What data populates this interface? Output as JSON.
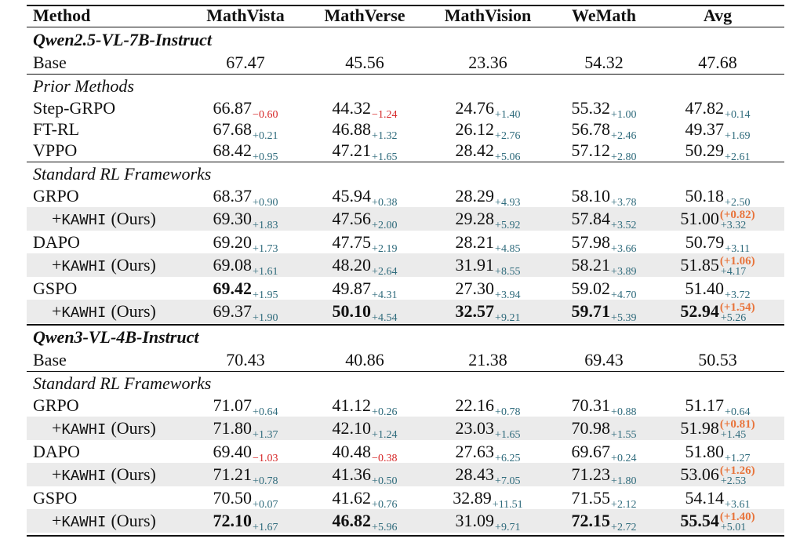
{
  "header": [
    "Method",
    "MathVista",
    "MathVerse",
    "MathVision",
    "WeMath",
    "Avg"
  ],
  "sections": [
    {
      "title": "Qwen2.5-VL-7B-Instruct",
      "groups": [
        {
          "rows": [
            {
              "method": "Base",
              "cells": [
                [
                  "67.47"
                ],
                [
                  "45.56"
                ],
                [
                  "23.36"
                ],
                [
                  "54.32"
                ],
                [
                  "47.68"
                ]
              ]
            }
          ]
        },
        {
          "label": "Prior Methods",
          "rows": [
            {
              "method": "Step-GRPO",
              "cells": [
                [
                  "66.87",
                  "−0.60"
                ],
                [
                  "44.32",
                  "−1.24"
                ],
                [
                  "24.76",
                  "+1.40"
                ],
                [
                  "55.32",
                  "+1.00"
                ],
                [
                  "47.82",
                  "+0.14"
                ]
              ]
            },
            {
              "method": "FT-RL",
              "cells": [
                [
                  "67.68",
                  "+0.21"
                ],
                [
                  "46.88",
                  "+1.32"
                ],
                [
                  "26.12",
                  "+2.76"
                ],
                [
                  "56.78",
                  "+2.46"
                ],
                [
                  "49.37",
                  "+1.69"
                ]
              ]
            },
            {
              "method": "VPPO",
              "cells": [
                [
                  "68.42",
                  "+0.95"
                ],
                [
                  "47.21",
                  "+1.65"
                ],
                [
                  "28.42",
                  "+5.06"
                ],
                [
                  "57.12",
                  "+2.80"
                ],
                [
                  "50.29",
                  "+2.61"
                ]
              ]
            }
          ]
        },
        {
          "label": "Standard RL Frameworks",
          "rows": [
            {
              "method": "GRPO",
              "cells": [
                [
                  "68.37",
                  "+0.90"
                ],
                [
                  "45.94",
                  "+0.38"
                ],
                [
                  "28.29",
                  "+4.93"
                ],
                [
                  "58.10",
                  "+3.78"
                ],
                [
                  "50.18",
                  "+2.50"
                ]
              ]
            },
            {
              "method": [
                "+",
                "KAWHI",
                "(Ours)"
              ],
              "cells": [
                [
                  "69.30",
                  "+1.83"
                ],
                [
                  "47.56",
                  "+2.00"
                ],
                [
                  "29.28",
                  "+5.92"
                ],
                [
                  "57.84",
                  "+3.52"
                ],
                [
                  "51.00",
                  "+3.32",
                  "(+0.82)"
                ]
              ]
            },
            {
              "method": "DAPO",
              "cells": [
                [
                  "69.20",
                  "+1.73"
                ],
                [
                  "47.75",
                  "+2.19"
                ],
                [
                  "28.21",
                  "+4.85"
                ],
                [
                  "57.98",
                  "+3.66"
                ],
                [
                  "50.79",
                  "+3.11"
                ]
              ]
            },
            {
              "method": [
                "+",
                "KAWHI",
                "(Ours)"
              ],
              "cells": [
                [
                  "69.08",
                  "+1.61"
                ],
                [
                  "48.20",
                  "+2.64"
                ],
                [
                  "31.91",
                  "+8.55"
                ],
                [
                  "58.21",
                  "+3.89"
                ],
                [
                  "51.85",
                  "+4.17",
                  "(+1.06)"
                ]
              ]
            },
            {
              "method": "GSPO",
              "bold": [
                0
              ],
              "cells": [
                [
                  "69.42",
                  "+1.95"
                ],
                [
                  "49.87",
                  "+4.31"
                ],
                [
                  "27.30",
                  "+3.94"
                ],
                [
                  "59.02",
                  "+4.70"
                ],
                [
                  "51.40",
                  "+3.72"
                ]
              ]
            },
            {
              "method": [
                "+",
                "KAWHI",
                "(Ours)"
              ],
              "bold": [
                1,
                2,
                3,
                4
              ],
              "cells": [
                [
                  "69.37",
                  "+1.90"
                ],
                [
                  "50.10",
                  "+4.54"
                ],
                [
                  "32.57",
                  "+9.21"
                ],
                [
                  "59.71",
                  "+5.39"
                ],
                [
                  "52.94",
                  "+5.26",
                  "(+1.54)"
                ]
              ]
            }
          ]
        }
      ]
    },
    {
      "title": "Qwen3-VL-4B-Instruct",
      "groups": [
        {
          "rows": [
            {
              "method": "Base",
              "cells": [
                [
                  "70.43"
                ],
                [
                  "40.86"
                ],
                [
                  "21.38"
                ],
                [
                  "69.43"
                ],
                [
                  "50.53"
                ]
              ]
            }
          ]
        },
        {
          "label": "Standard RL Frameworks",
          "rows": [
            {
              "method": "GRPO",
              "cells": [
                [
                  "71.07",
                  "+0.64"
                ],
                [
                  "41.12",
                  "+0.26"
                ],
                [
                  "22.16",
                  "+0.78"
                ],
                [
                  "70.31",
                  "+0.88"
                ],
                [
                  "51.17",
                  "+0.64"
                ]
              ]
            },
            {
              "method": [
                "+",
                "KAWHI",
                "(Ours)"
              ],
              "cells": [
                [
                  "71.80",
                  "+1.37"
                ],
                [
                  "42.10",
                  "+1.24"
                ],
                [
                  "23.03",
                  "+1.65"
                ],
                [
                  "70.98",
                  "+1.55"
                ],
                [
                  "51.98",
                  "+1.45",
                  "(+0.81)"
                ]
              ]
            },
            {
              "method": "DAPO",
              "cells": [
                [
                  "69.40",
                  "−1.03"
                ],
                [
                  "40.48",
                  "−0.38"
                ],
                [
                  "27.63",
                  "+6.25"
                ],
                [
                  "69.67",
                  "+0.24"
                ],
                [
                  "51.80",
                  "+1.27"
                ]
              ]
            },
            {
              "method": [
                "+",
                "KAWHI",
                "(Ours)"
              ],
              "cells": [
                [
                  "71.21",
                  "+0.78"
                ],
                [
                  "41.36",
                  "+0.50"
                ],
                [
                  "28.43",
                  "+7.05"
                ],
                [
                  "71.23",
                  "+1.80"
                ],
                [
                  "53.06",
                  "+2.53",
                  "(+1.26)"
                ]
              ]
            },
            {
              "method": "GSPO",
              "cells": [
                [
                  "70.50",
                  "+0.07"
                ],
                [
                  "41.62",
                  "+0.76"
                ],
                [
                  "32.89",
                  "+11.51"
                ],
                [
                  "71.55",
                  "+2.12"
                ],
                [
                  "54.14",
                  "+3.61"
                ]
              ]
            },
            {
              "method": [
                "+",
                "KAWHI",
                "(Ours)"
              ],
              "bold": [
                0,
                1,
                3,
                4
              ],
              "cells": [
                [
                  "72.10",
                  "+1.67"
                ],
                [
                  "46.82",
                  "+5.96"
                ],
                [
                  "31.09",
                  "+9.71"
                ],
                [
                  "72.15",
                  "+2.72"
                ],
                [
                  "55.54",
                  "+5.01",
                  "(+1.40)"
                ]
              ]
            }
          ]
        }
      ]
    }
  ]
}
